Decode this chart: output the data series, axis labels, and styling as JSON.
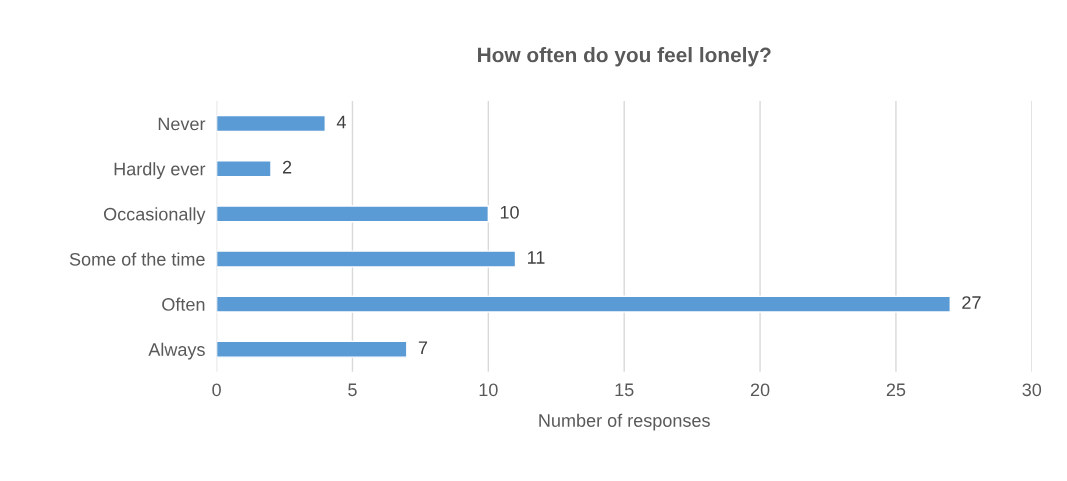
{
  "chart_data": {
    "type": "bar",
    "orientation": "horizontal",
    "title": "How often do you feel lonely?",
    "xlabel": "Number of responses",
    "categories": [
      "Never",
      "Hardly ever",
      "Occasionally",
      "Some of the time",
      "Often",
      "Always"
    ],
    "values": [
      4,
      2,
      10,
      11,
      27,
      7
    ],
    "color": "#5b9bd5",
    "xlim": [
      0,
      30
    ],
    "xticks": [
      0,
      5,
      10,
      15,
      20,
      25,
      30
    ],
    "grid": "x",
    "data_labels": true
  }
}
